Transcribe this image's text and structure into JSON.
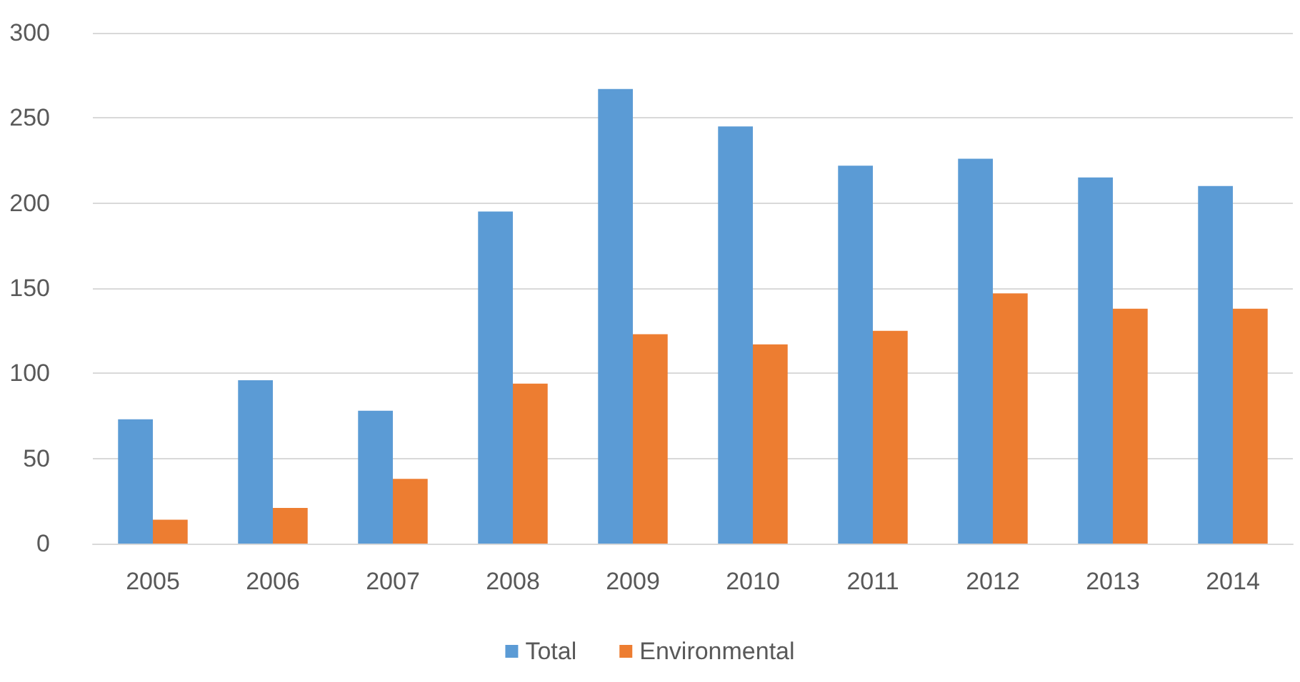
{
  "chart_data": {
    "type": "bar",
    "categories": [
      "2005",
      "2006",
      "2007",
      "2008",
      "2009",
      "2010",
      "2011",
      "2012",
      "2013",
      "2014"
    ],
    "series": [
      {
        "name": "Total",
        "color": "#5b9bd5",
        "values": [
          73,
          96,
          78,
          195,
          267,
          245,
          222,
          226,
          215,
          210
        ]
      },
      {
        "name": "Environmental",
        "color": "#ed7d31",
        "values": [
          14,
          21,
          38,
          94,
          123,
          117,
          125,
          147,
          138,
          138
        ]
      }
    ],
    "ylim": [
      0,
      300
    ],
    "yticks": [
      0,
      50,
      100,
      150,
      200,
      250,
      300
    ],
    "grid": "y",
    "legend": "bottom"
  }
}
